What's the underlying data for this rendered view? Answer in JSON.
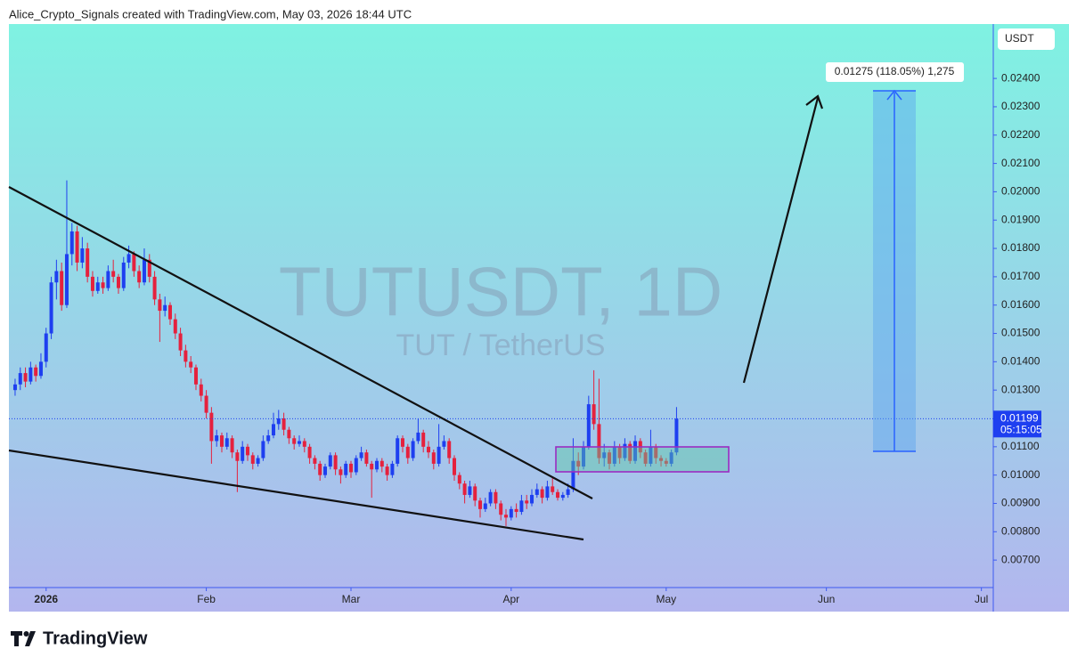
{
  "header": "Alice_Crypto_Signals created with TradingView.com, May 03, 2026 18:44 UTC",
  "chart_data": {
    "type": "candlestick",
    "title": "TUTUSDT, 1D",
    "subtitle": "TUT / TetherUS",
    "currency": "USDT",
    "last_price": 0.01199,
    "countdown": "05:15:05",
    "measure_label": "0.01275 (118.05%) 1,275",
    "up_color": "#1e3ff0",
    "down_color": "#e5213d",
    "ylim": [
      0.00603,
      0.02592
    ],
    "yticks": [
      {
        "value": 0.007,
        "label": "0.00700"
      },
      {
        "value": 0.008,
        "label": "0.00800"
      },
      {
        "value": 0.009,
        "label": "0.00900"
      },
      {
        "value": 0.01,
        "label": "0.01000"
      },
      {
        "value": 0.011,
        "label": "0.01100"
      },
      {
        "value": 0.012,
        "label": "0.01200"
      },
      {
        "value": 0.013,
        "label": "0.01300"
      },
      {
        "value": 0.014,
        "label": "0.01400"
      },
      {
        "value": 0.015,
        "label": "0.01500"
      },
      {
        "value": 0.016,
        "label": "0.01600"
      },
      {
        "value": 0.017,
        "label": "0.01700"
      },
      {
        "value": 0.018,
        "label": "0.01800"
      },
      {
        "value": 0.019,
        "label": "0.01900"
      },
      {
        "value": 0.02,
        "label": "0.02000"
      },
      {
        "value": 0.021,
        "label": "0.02100"
      },
      {
        "value": 0.022,
        "label": "0.02200"
      },
      {
        "value": 0.023,
        "label": "0.02300"
      },
      {
        "value": 0.024,
        "label": "0.02400"
      }
    ],
    "xlim": [
      -1.2,
      189.3
    ],
    "xticks": [
      {
        "value": 6,
        "label": "2026"
      },
      {
        "value": 37,
        "label": "Feb"
      },
      {
        "value": 65,
        "label": "Mar"
      },
      {
        "value": 96,
        "label": "Apr"
      },
      {
        "value": 126,
        "label": "May"
      },
      {
        "value": 157,
        "label": "Jun"
      },
      {
        "value": 187,
        "label": "Jul"
      }
    ],
    "candles": [
      [
        0.013,
        0.0134,
        0.0128,
        0.0132
      ],
      [
        0.0132,
        0.0138,
        0.013,
        0.0136
      ],
      [
        0.0136,
        0.0138,
        0.0131,
        0.0133
      ],
      [
        0.0133,
        0.014,
        0.0132,
        0.0138
      ],
      [
        0.0138,
        0.0139,
        0.0133,
        0.0135
      ],
      [
        0.0135,
        0.0143,
        0.0134,
        0.014
      ],
      [
        0.014,
        0.0152,
        0.0138,
        0.015
      ],
      [
        0.015,
        0.017,
        0.0148,
        0.0168
      ],
      [
        0.0168,
        0.0176,
        0.0162,
        0.0172
      ],
      [
        0.0172,
        0.0175,
        0.0158,
        0.016
      ],
      [
        0.016,
        0.0204,
        0.0159,
        0.0178
      ],
      [
        0.0178,
        0.0189,
        0.0174,
        0.0186
      ],
      [
        0.0186,
        0.0188,
        0.0172,
        0.0175
      ],
      [
        0.0175,
        0.0184,
        0.0173,
        0.018
      ],
      [
        0.018,
        0.0182,
        0.0168,
        0.017
      ],
      [
        0.017,
        0.0172,
        0.0163,
        0.0165
      ],
      [
        0.0165,
        0.017,
        0.0164,
        0.0168
      ],
      [
        0.0168,
        0.017,
        0.0164,
        0.0166
      ],
      [
        0.0166,
        0.0174,
        0.0165,
        0.0172
      ],
      [
        0.0172,
        0.0176,
        0.0168,
        0.017
      ],
      [
        0.017,
        0.0171,
        0.0164,
        0.0166
      ],
      [
        0.0166,
        0.0177,
        0.0165,
        0.0175
      ],
      [
        0.0175,
        0.0181,
        0.0173,
        0.0178
      ],
      [
        0.0178,
        0.0179,
        0.017,
        0.0172
      ],
      [
        0.0172,
        0.0174,
        0.0166,
        0.0168
      ],
      [
        0.0168,
        0.018,
        0.0167,
        0.0176
      ],
      [
        0.0176,
        0.0178,
        0.0168,
        0.017
      ],
      [
        0.017,
        0.0172,
        0.016,
        0.0162
      ],
      [
        0.0162,
        0.0164,
        0.0147,
        0.0158
      ],
      [
        0.0158,
        0.0163,
        0.0156,
        0.016
      ],
      [
        0.016,
        0.0161,
        0.0153,
        0.0155
      ],
      [
        0.0155,
        0.0157,
        0.0148,
        0.015
      ],
      [
        0.015,
        0.0152,
        0.0142,
        0.0144
      ],
      [
        0.0144,
        0.0146,
        0.0138,
        0.014
      ],
      [
        0.014,
        0.0142,
        0.0136,
        0.0138
      ],
      [
        0.0138,
        0.0139,
        0.013,
        0.0132
      ],
      [
        0.0132,
        0.0134,
        0.0126,
        0.0128
      ],
      [
        0.0128,
        0.013,
        0.012,
        0.0122
      ],
      [
        0.0122,
        0.0124,
        0.0104,
        0.0112
      ],
      [
        0.0112,
        0.0116,
        0.011,
        0.0114
      ],
      [
        0.0114,
        0.0115,
        0.0108,
        0.011
      ],
      [
        0.011,
        0.0115,
        0.0109,
        0.0113
      ],
      [
        0.0113,
        0.0114,
        0.0106,
        0.0108
      ],
      [
        0.0108,
        0.0109,
        0.0094,
        0.0105
      ],
      [
        0.0105,
        0.0112,
        0.0104,
        0.011
      ],
      [
        0.011,
        0.0111,
        0.0105,
        0.0107
      ],
      [
        0.0107,
        0.0108,
        0.0102,
        0.0104
      ],
      [
        0.0104,
        0.0107,
        0.0103,
        0.0106
      ],
      [
        0.0106,
        0.0114,
        0.0105,
        0.0112
      ],
      [
        0.0112,
        0.0116,
        0.0111,
        0.0114
      ],
      [
        0.0114,
        0.0122,
        0.0113,
        0.0118
      ],
      [
        0.0118,
        0.0123,
        0.0116,
        0.012
      ],
      [
        0.012,
        0.0122,
        0.0114,
        0.0116
      ],
      [
        0.0116,
        0.0117,
        0.0111,
        0.0113
      ],
      [
        0.0113,
        0.0114,
        0.0109,
        0.0111
      ],
      [
        0.0111,
        0.0114,
        0.011,
        0.0112
      ],
      [
        0.0112,
        0.0113,
        0.0108,
        0.011
      ],
      [
        0.011,
        0.0111,
        0.0104,
        0.0106
      ],
      [
        0.0106,
        0.0107,
        0.0102,
        0.0104
      ],
      [
        0.0104,
        0.0105,
        0.0098,
        0.01
      ],
      [
        0.01,
        0.0104,
        0.0099,
        0.0103
      ],
      [
        0.0103,
        0.0108,
        0.0102,
        0.0107
      ],
      [
        0.0107,
        0.0108,
        0.01,
        0.0102
      ],
      [
        0.0102,
        0.0103,
        0.0097,
        0.01
      ],
      [
        0.01,
        0.0105,
        0.0099,
        0.0104
      ],
      [
        0.0104,
        0.0105,
        0.0099,
        0.0101
      ],
      [
        0.0101,
        0.0107,
        0.01,
        0.0106
      ],
      [
        0.0106,
        0.011,
        0.0105,
        0.0108
      ],
      [
        0.0108,
        0.0109,
        0.0103,
        0.0104
      ],
      [
        0.0104,
        0.0105,
        0.0092,
        0.0102
      ],
      [
        0.0102,
        0.0106,
        0.0101,
        0.0105
      ],
      [
        0.0105,
        0.0106,
        0.0101,
        0.0103
      ],
      [
        0.0103,
        0.0104,
        0.0098,
        0.01
      ],
      [
        0.01,
        0.0105,
        0.0099,
        0.0104
      ],
      [
        0.0104,
        0.0114,
        0.0103,
        0.0113
      ],
      [
        0.0113,
        0.0114,
        0.0108,
        0.011
      ],
      [
        0.011,
        0.0111,
        0.0104,
        0.0106
      ],
      [
        0.0106,
        0.0113,
        0.0105,
        0.0112
      ],
      [
        0.0112,
        0.012,
        0.0111,
        0.0115
      ],
      [
        0.0115,
        0.0116,
        0.0108,
        0.011
      ],
      [
        0.011,
        0.0112,
        0.0106,
        0.0108
      ],
      [
        0.0108,
        0.0109,
        0.0102,
        0.0104
      ],
      [
        0.0104,
        0.0118,
        0.0103,
        0.011
      ],
      [
        0.011,
        0.0114,
        0.0109,
        0.0112
      ],
      [
        0.0112,
        0.0113,
        0.0104,
        0.0106
      ],
      [
        0.0106,
        0.0107,
        0.0098,
        0.01
      ],
      [
        0.01,
        0.0101,
        0.0095,
        0.0097
      ],
      [
        0.0097,
        0.0098,
        0.009,
        0.0093
      ],
      [
        0.0093,
        0.0098,
        0.0092,
        0.0096
      ],
      [
        0.0096,
        0.0097,
        0.0089,
        0.0091
      ],
      [
        0.0091,
        0.0092,
        0.0085,
        0.0088
      ],
      [
        0.0088,
        0.0092,
        0.0087,
        0.009
      ],
      [
        0.009,
        0.0095,
        0.0089,
        0.0094
      ],
      [
        0.0094,
        0.0095,
        0.0088,
        0.009
      ],
      [
        0.009,
        0.0091,
        0.0084,
        0.0086
      ],
      [
        0.0086,
        0.0088,
        0.0082,
        0.0085
      ],
      [
        0.0085,
        0.0089,
        0.0084,
        0.0088
      ],
      [
        0.0088,
        0.009,
        0.0085,
        0.0087
      ],
      [
        0.0087,
        0.0093,
        0.0086,
        0.0091
      ],
      [
        0.0091,
        0.0093,
        0.0088,
        0.009
      ],
      [
        0.009,
        0.0095,
        0.0089,
        0.0093
      ],
      [
        0.0093,
        0.0097,
        0.0092,
        0.0095
      ],
      [
        0.0095,
        0.0096,
        0.009,
        0.0092
      ],
      [
        0.0092,
        0.0098,
        0.0091,
        0.0096
      ],
      [
        0.0096,
        0.0099,
        0.0093,
        0.0094
      ],
      [
        0.0094,
        0.0095,
        0.0091,
        0.0092
      ],
      [
        0.0092,
        0.0094,
        0.0091,
        0.0093
      ],
      [
        0.0093,
        0.0097,
        0.0092,
        0.0095
      ],
      [
        0.0095,
        0.0113,
        0.0094,
        0.0105
      ],
      [
        0.0105,
        0.0108,
        0.01,
        0.0103
      ],
      [
        0.0103,
        0.0112,
        0.0102,
        0.011
      ],
      [
        0.011,
        0.0128,
        0.0109,
        0.0125
      ],
      [
        0.0125,
        0.0137,
        0.0116,
        0.0118
      ],
      [
        0.0118,
        0.0134,
        0.0104,
        0.0106
      ],
      [
        0.0106,
        0.0111,
        0.0103,
        0.0108
      ],
      [
        0.0108,
        0.0109,
        0.0102,
        0.0104
      ],
      [
        0.0104,
        0.0112,
        0.0103,
        0.011
      ],
      [
        0.011,
        0.0111,
        0.0104,
        0.0106
      ],
      [
        0.0106,
        0.0113,
        0.0105,
        0.0111
      ],
      [
        0.0111,
        0.0112,
        0.0104,
        0.0105
      ],
      [
        0.0105,
        0.0114,
        0.0104,
        0.0112
      ],
      [
        0.0112,
        0.0113,
        0.0106,
        0.0108
      ],
      [
        0.0108,
        0.0109,
        0.0103,
        0.0104
      ],
      [
        0.0104,
        0.0116,
        0.0103,
        0.011
      ],
      [
        0.011,
        0.0111,
        0.0104,
        0.0106
      ],
      [
        0.0106,
        0.0107,
        0.0103,
        0.0105
      ],
      [
        0.0105,
        0.0106,
        0.0103,
        0.0104
      ],
      [
        0.0104,
        0.0109,
        0.0103,
        0.0108
      ],
      [
        0.0108,
        0.0124,
        0.0107,
        0.01199
      ]
    ]
  },
  "footer": {
    "brand": "TradingView"
  }
}
